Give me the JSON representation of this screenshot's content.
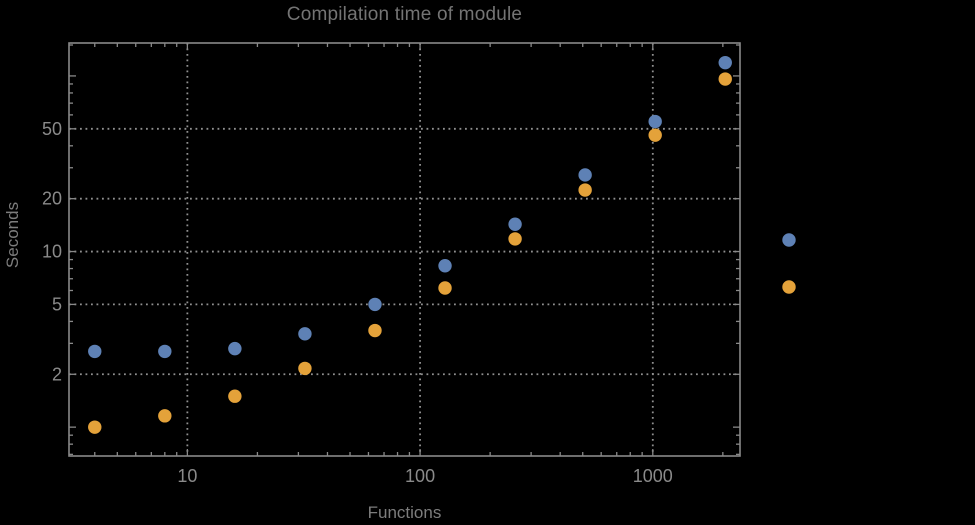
{
  "chart_data": {
    "type": "scatter",
    "title": "Compilation time of module",
    "xlabel": "Functions",
    "ylabel": "Seconds",
    "x_scale": "log",
    "y_scale": "log",
    "xlim": [
      3.1,
      2370
    ],
    "ylim": [
      0.685,
      154
    ],
    "grid_on": true,
    "x": [
      4,
      8,
      16,
      32,
      64,
      128,
      256,
      512,
      1024,
      2048
    ],
    "series": [
      {
        "name": "series-1-blue",
        "color": "#5e81b5",
        "values": [
          2.7,
          2.7,
          2.8,
          3.4,
          5.0,
          8.3,
          14.3,
          27.3,
          55,
          119
        ]
      },
      {
        "name": "series-2-orange",
        "color": "#e4a23a",
        "values": [
          1.0,
          1.16,
          1.5,
          2.16,
          3.55,
          6.2,
          11.8,
          22.4,
          46,
          96
        ]
      }
    ],
    "x_ticks": {
      "major": [
        10,
        100,
        1000
      ],
      "major_labels": [
        "10",
        "100",
        "1000"
      ],
      "minor": [
        4,
        5,
        6,
        7,
        8,
        9,
        20,
        30,
        40,
        50,
        60,
        70,
        80,
        90,
        200,
        300,
        400,
        500,
        600,
        700,
        800,
        900,
        2000
      ]
    },
    "y_ticks": {
      "major_labeled": [
        2,
        5,
        10,
        20,
        50
      ],
      "major_labels": [
        "2",
        "5",
        "10",
        "20",
        "50"
      ],
      "major_unlabeled": [
        1,
        100
      ],
      "minor": [
        0.7,
        0.8,
        0.9,
        3,
        4,
        6,
        7,
        8,
        9,
        30,
        40,
        60,
        70,
        80,
        90,
        150
      ]
    },
    "gridlines": {
      "x": [
        10,
        100,
        1000
      ],
      "y": [
        2,
        5,
        10,
        20,
        50
      ],
      "style": "dotted"
    },
    "legend": {
      "position": "outside-right",
      "markers": [
        {
          "series": "series-1-blue",
          "color": "#5e81b5"
        },
        {
          "series": "series-2-orange",
          "color": "#e4a23a"
        }
      ]
    },
    "colors": {
      "background": "#000000",
      "frame": "#898989",
      "grid": "#909090",
      "tick_label": "#8a8a8a",
      "title": "#747474",
      "axis_label": "#7d7d7d"
    }
  }
}
